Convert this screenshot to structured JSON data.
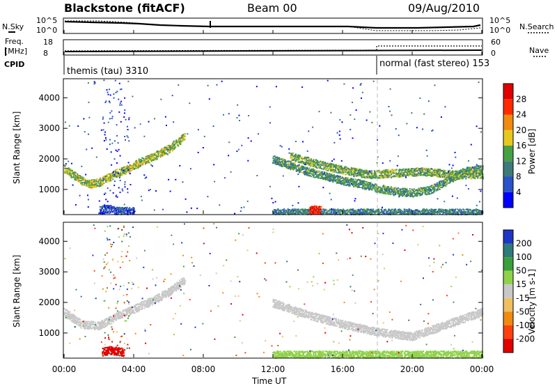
{
  "header": {
    "station": "Blackstone (fitACF)",
    "beam": "Beam 00",
    "date": "09/Aug/2010"
  },
  "status_panels": {
    "nsky_label": "N.Sky",
    "nsearch_label": "N.Search",
    "freq_label_line1": "Freq.",
    "freq_label_line2": "[MHz]",
    "nave_label": "Nave",
    "cpid_label": "CPID",
    "noise_ticks": [
      "10^5",
      "10^0"
    ],
    "freq_ticks": [
      "18",
      "8"
    ],
    "nave_ticks": [
      "60",
      "0"
    ],
    "cpid_segments": [
      {
        "label": "themis (tau) 3310",
        "start_h": 0,
        "end_h": 18
      },
      {
        "label": "normal (fast stereo) 153",
        "start_h": 18,
        "end_h": 24
      }
    ]
  },
  "axes": {
    "xlabel": "Time UT",
    "x_ticks": [
      "00:00",
      "04:00",
      "08:00",
      "12:00",
      "16:00",
      "20:00",
      "00:00"
    ],
    "ylabel": "Slant Range [km]",
    "y_ticks": [
      "1000",
      "2000",
      "3000",
      "4000"
    ]
  },
  "power_scale": {
    "label": "Power [dB]",
    "ticks": [
      "4",
      "8",
      "12",
      "16",
      "20",
      "24",
      "28"
    ],
    "colors": [
      "#0000ff",
      "#2a52c9",
      "#3f7a7a",
      "#46a046",
      "#e8c81e",
      "#f08a10",
      "#ff2a00",
      "#e00000"
    ]
  },
  "velocity_scale": {
    "label": "Velocity [m s-1]",
    "ticks": [
      "200",
      "100",
      "50",
      "15",
      "-15",
      "-50",
      "-100",
      "-200"
    ],
    "colors": [
      "#1f35c8",
      "#2f7a7a",
      "#3aa03a",
      "#8fd24a",
      "#c8c8c8",
      "#f0c060",
      "#f08a10",
      "#ff4010",
      "#e00000"
    ]
  },
  "chart_data": [
    {
      "type": "heatmap",
      "title": "",
      "xlabel": "Time UT",
      "ylabel": "Slant Range [km]",
      "xlim": [
        0,
        24
      ],
      "ylim": [
        200,
        4600
      ],
      "colorbar": "Power [dB]",
      "color_range": [
        0,
        32
      ],
      "features": [
        {
          "name": "",
          "points": [
            [
              0.0,
              1700
            ],
            [
              0.5,
              1500
            ],
            [
              1.0,
              1300
            ],
            [
              1.5,
              1200
            ],
            [
              2.0,
              1250
            ],
            [
              2.5,
              1400
            ],
            [
              3.0,
              1550
            ],
            [
              3.5,
              1650
            ],
            [
              4.0,
              1800
            ],
            [
              4.5,
              1950
            ],
            [
              5.0,
              2050
            ],
            [
              5.5,
              2200
            ],
            [
              6.0,
              2350
            ],
            [
              6.5,
              2550
            ],
            [
              6.9,
              2750
            ]
          ],
          "value": 16
        },
        {
          "name": "",
          "points": [
            [
              12.0,
              2000
            ],
            [
              13.0,
              1800
            ],
            [
              14.0,
              1600
            ],
            [
              15.0,
              1450
            ],
            [
              16.0,
              1300
            ],
            [
              17.0,
              1200
            ],
            [
              18.0,
              1050
            ],
            [
              19.0,
              950
            ],
            [
              20.0,
              900
            ],
            [
              21.0,
              1000
            ],
            [
              22.0,
              1300
            ],
            [
              23.0,
              1600
            ],
            [
              24.0,
              1700
            ]
          ],
          "value": 12
        },
        {
          "name": "",
          "points": [
            [
              13.0,
              2100
            ],
            [
              14.5,
              1850
            ],
            [
              16.0,
              1650
            ],
            [
              17.5,
              1500
            ],
            [
              19.0,
              1550
            ],
            [
              20.5,
              1600
            ],
            [
              22.5,
              1500
            ],
            [
              24.0,
              1500
            ]
          ],
          "value": 14
        },
        {
          "name": "",
          "points": [
            [
              12.0,
              250
            ],
            [
              14.0,
              250
            ],
            [
              16.0,
              250
            ],
            [
              18.0,
              250
            ],
            [
              20.0,
              250
            ],
            [
              22.0,
              250
            ],
            [
              24.0,
              250
            ]
          ],
          "value": 10
        },
        {
          "name": "",
          "points": [
            [
              2.0,
              350
            ],
            [
              2.5,
              380
            ],
            [
              3.0,
              320
            ],
            [
              3.5,
              300
            ],
            [
              4.0,
              300
            ]
          ],
          "value": 6
        },
        {
          "name": "",
          "points": [
            [
              14.1,
              330
            ],
            [
              14.4,
              360
            ],
            [
              14.7,
              330
            ]
          ],
          "value": 28
        }
      ]
    },
    {
      "type": "heatmap",
      "title": "",
      "xlabel": "Time UT",
      "ylabel": "Slant Range [km]",
      "xlim": [
        0,
        24
      ],
      "ylim": [
        200,
        4600
      ],
      "colorbar": "Velocity [m s-1]",
      "color_range": [
        -200,
        200
      ],
      "features": [
        {
          "name": "",
          "points": [
            [
              0.0,
              1700
            ],
            [
              1.0,
              1300
            ],
            [
              2.0,
              1250
            ],
            [
              3.0,
              1550
            ],
            [
              4.0,
              1800
            ],
            [
              5.0,
              2050
            ],
            [
              6.0,
              2350
            ],
            [
              6.9,
              2750
            ]
          ],
          "value": 0
        },
        {
          "name": "",
          "points": [
            [
              12.0,
              2000
            ],
            [
              14.0,
              1600
            ],
            [
              16.0,
              1300
            ],
            [
              18.0,
              1050
            ],
            [
              20.0,
              900
            ],
            [
              22.0,
              1300
            ],
            [
              24.0,
              1700
            ]
          ],
          "value": 0
        },
        {
          "name": "",
          "points": [
            [
              2.2,
              400
            ],
            [
              2.6,
              450
            ],
            [
              3.0,
              420
            ],
            [
              3.4,
              380
            ]
          ],
          "value": -200
        },
        {
          "name": "",
          "points": [
            [
              12.0,
              300
            ],
            [
              16.0,
              300
            ],
            [
              20.0,
              300
            ],
            [
              24.0,
              300
            ]
          ],
          "value": 50
        }
      ]
    }
  ]
}
